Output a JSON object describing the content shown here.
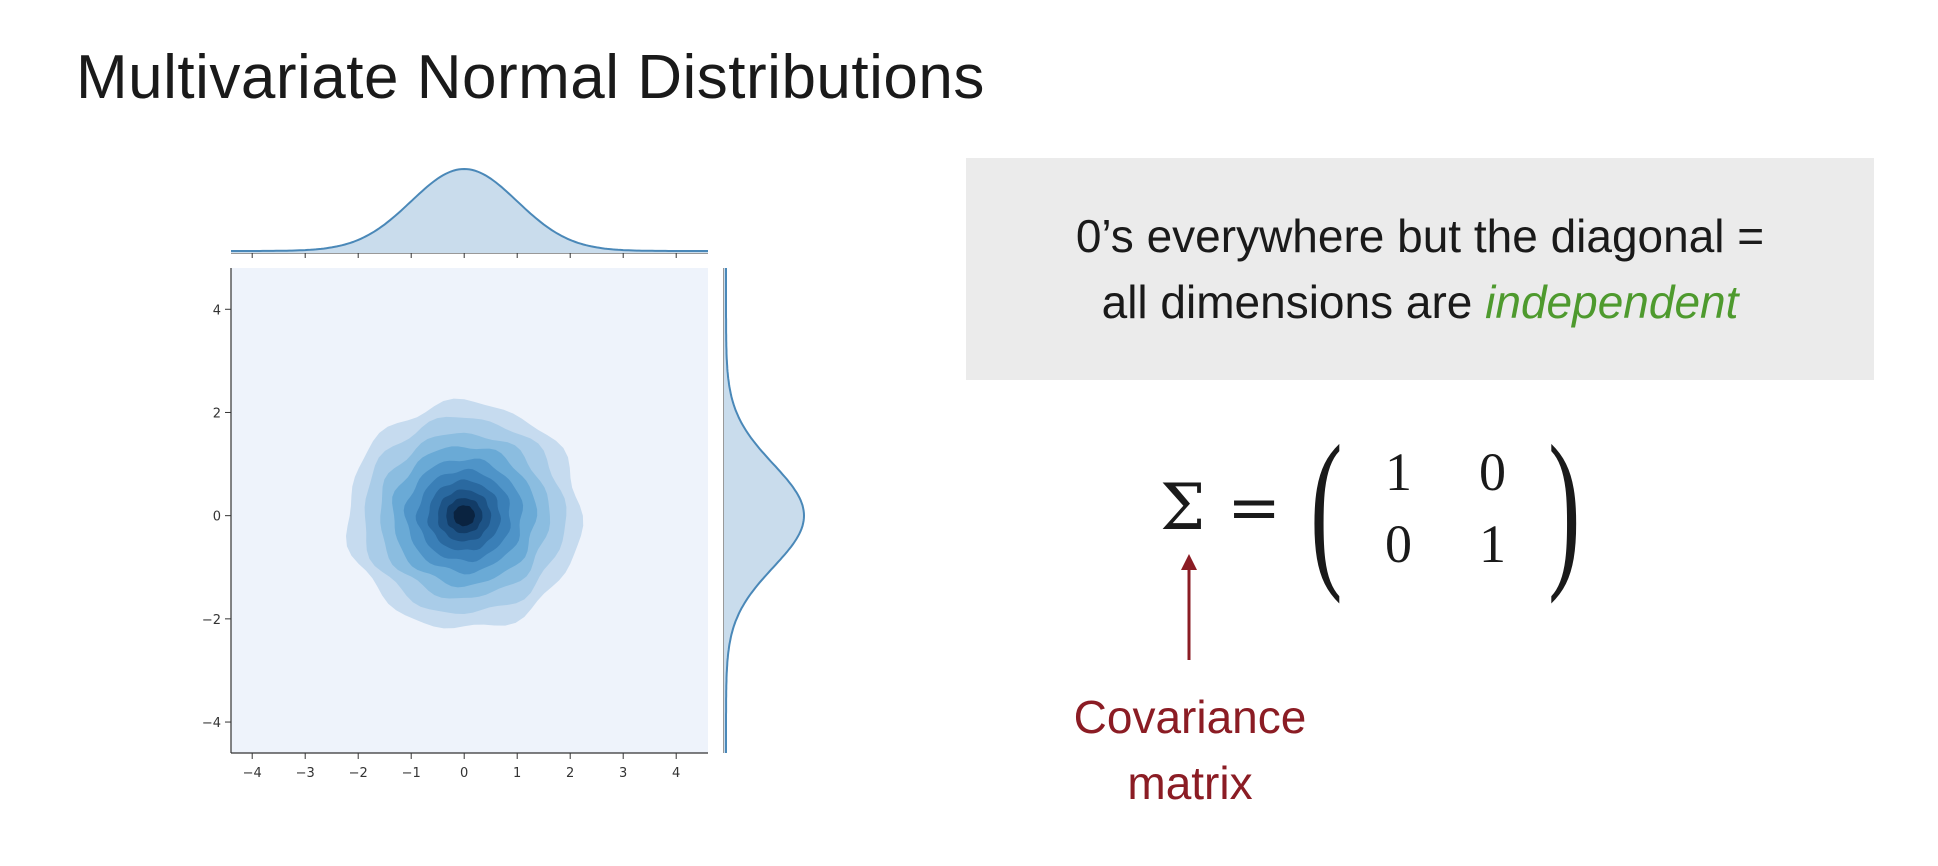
{
  "slide": {
    "title": "Multivariate Normal Distributions"
  },
  "callout": {
    "line1": "0’s everywhere but the diagonal =",
    "line2_prefix": "all dimensions are ",
    "line2_emphasis": "independent",
    "emphasis_color": "#4e9a2e"
  },
  "equation": {
    "symbol": "Σ",
    "equals": "=",
    "left_paren": "(",
    "right_paren": ")",
    "matrix": [
      [
        "1",
        "0"
      ],
      [
        "0",
        "1"
      ]
    ]
  },
  "annotation": {
    "line1": "Covariance",
    "line2": "matrix",
    "color": "#8b1c24"
  },
  "chart_data": {
    "type": "jointplot-kde",
    "title": "",
    "xlabel": "",
    "ylabel": "",
    "xlim": [
      -4.4,
      4.6
    ],
    "ylim": [
      -4.6,
      4.8
    ],
    "x_ticks": [
      "−4",
      "−3",
      "−2",
      "−1",
      "0",
      "1",
      "2",
      "3",
      "4"
    ],
    "y_ticks": [
      "−4",
      "−2",
      "0",
      "2",
      "4"
    ],
    "joint": {
      "center": [
        0,
        0
      ],
      "covariance": [
        [
          1,
          0
        ],
        [
          0,
          1
        ]
      ],
      "contour_radii": [
        2.2,
        1.9,
        1.6,
        1.35,
        1.1,
        0.88,
        0.68,
        0.5,
        0.34,
        0.2
      ],
      "contour_colors": [
        "#c6dbef",
        "#a9cce8",
        "#8bbde0",
        "#6aaad6",
        "#4f94c8",
        "#3a7fb7",
        "#2a69a0",
        "#1d5386",
        "#123c67",
        "#0a2340"
      ],
      "background_color": "#eef3fb"
    },
    "marginals": {
      "x": {
        "mean": 0,
        "sd": 1
      },
      "y": {
        "mean": 0,
        "sd": 1
      },
      "line_color": "#4a88b8",
      "fill_color": "#c9dcec"
    },
    "grid": false
  }
}
